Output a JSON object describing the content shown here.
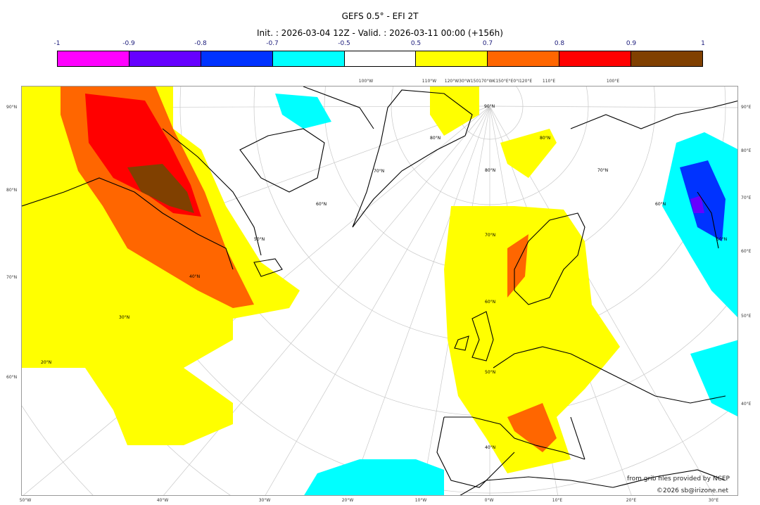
{
  "title": "GEFS 0.5° - EFI 2T",
  "subtitle": "Init. : 2026-03-04 12Z - Valid. : 2026-03-11 00:00 (+156h)",
  "colorbar": {
    "ticks": [
      "-1",
      "-0.9",
      "-0.8",
      "-0.7",
      "-0.5",
      "0.5",
      "0.7",
      "0.8",
      "0.9",
      "1"
    ],
    "colors": [
      "#ff00ff",
      "#6600ff",
      "#0033ff",
      "#00ffff",
      "#ffffff",
      "#ffff00",
      "#ff6600",
      "#ff0000",
      "#804000"
    ]
  },
  "axes": {
    "left": [
      "90°N",
      "80°N",
      "70°N",
      "60°N"
    ],
    "right": [
      "90°E",
      "80°E",
      "70°E",
      "60°E",
      "50°E",
      "40°E"
    ],
    "bottom": [
      "50°W",
      "40°W",
      "30°W",
      "20°W",
      "10°W",
      "0°W",
      "10°E",
      "20°E",
      "30°E"
    ],
    "top": [
      "100°W",
      "110°W",
      "120°W30°W150170°W€150°E°E0°I120°E",
      "110°E",
      "100°E"
    ]
  },
  "grid_labels": [
    "90°N",
    "80°N",
    "70°N",
    "60°N",
    "50°N",
    "40°N",
    "30°N",
    "20°N",
    "80°N",
    "70°N",
    "60°N",
    "50°N",
    "40°N",
    "80°N",
    "70°N",
    "60°N",
    "50°N"
  ],
  "credits": {
    "source": "from grib files provided by NCEP",
    "copyright": "©2026 sb@irizone.net"
  }
}
